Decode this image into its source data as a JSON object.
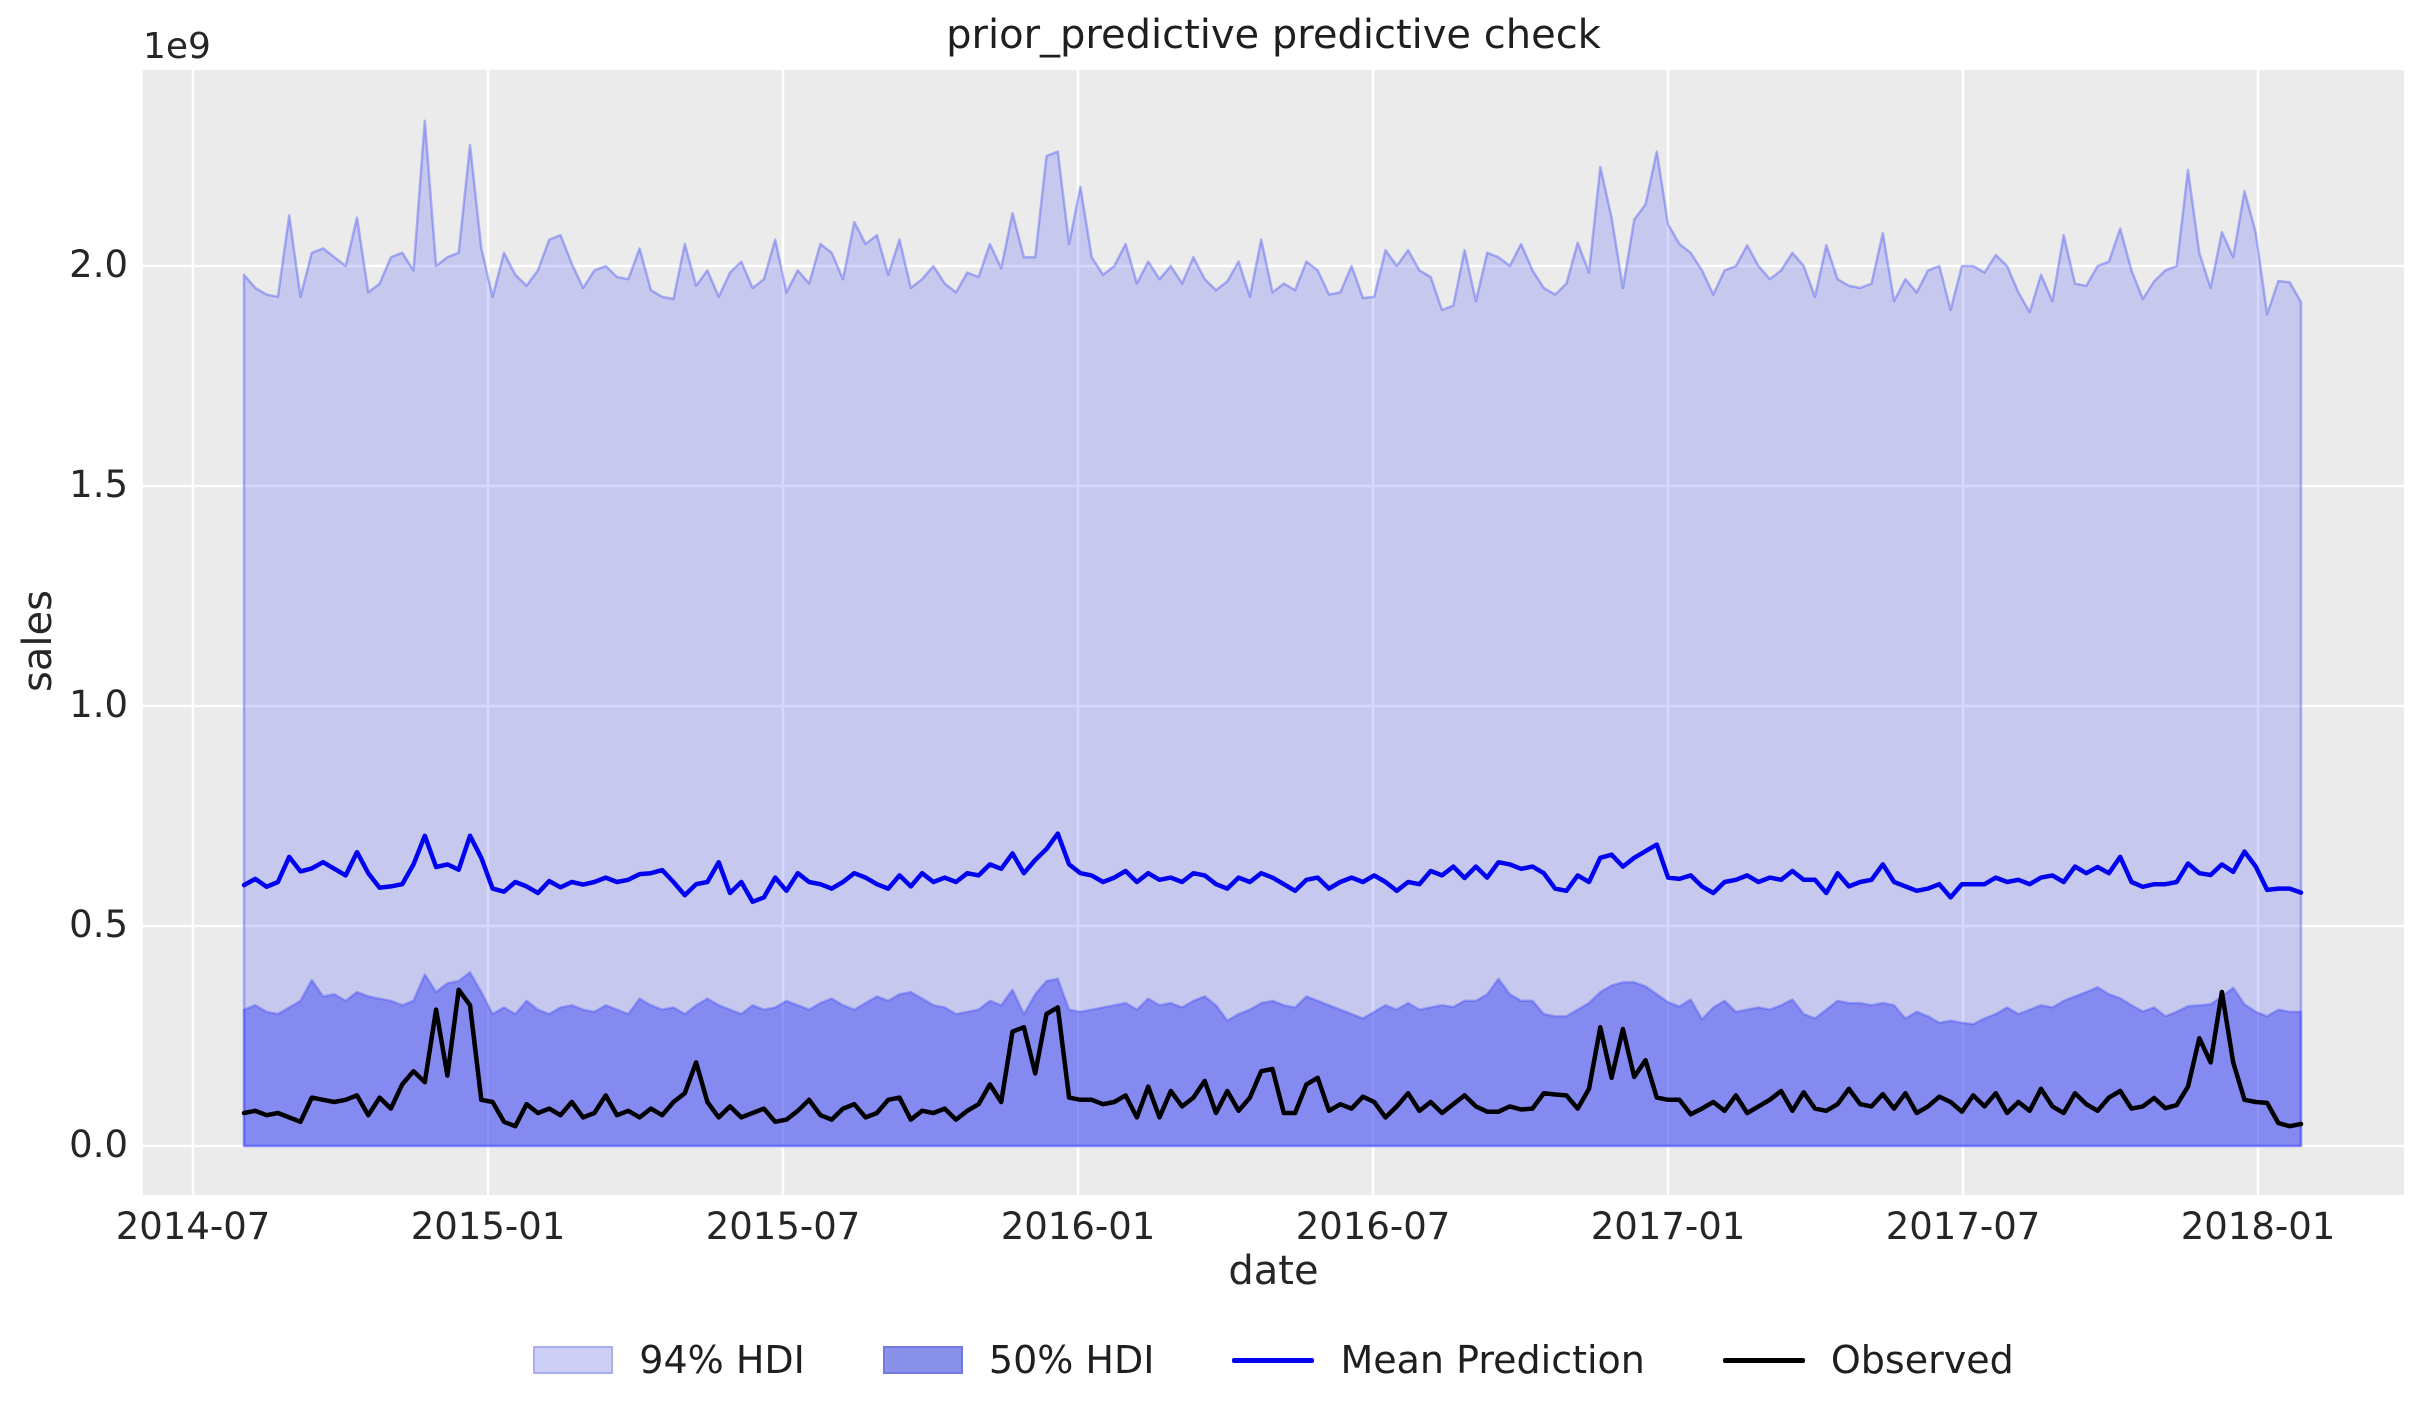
{
  "title": "prior_predictive predictive check",
  "axes": {
    "x": {
      "label": "date",
      "tick_labels": [
        "2014-07",
        "2015-01",
        "2015-07",
        "2016-01",
        "2016-07",
        "2017-01",
        "2017-07",
        "2018-01"
      ]
    },
    "y": {
      "label": "sales",
      "offset_text": "1e9",
      "tick_labels": [
        "0.0",
        "0.5",
        "1.0",
        "1.5",
        "2.0"
      ],
      "tick_values": [
        0.0,
        0.5,
        1.0,
        1.5,
        2.0
      ]
    }
  },
  "legend": {
    "items": [
      {
        "label": "94% HDI",
        "type": "patch",
        "fill": "#cdd0f4",
        "border": "#a9aeee",
        "icon": "hdi94-swatch"
      },
      {
        "label": "50% HDI",
        "type": "patch",
        "fill": "#8a91e8",
        "border": "#707ae2",
        "icon": "hdi50-swatch"
      },
      {
        "label": "Mean Prediction",
        "type": "line",
        "color": "#0103f0",
        "icon": "mean-line-sample"
      },
      {
        "label": "Observed",
        "type": "line",
        "color": "#000000",
        "icon": "observed-line-sample"
      }
    ]
  },
  "colors": {
    "figure_bg": "#ffffff",
    "plot_bg": "#ebebeb",
    "grid": "#ffffff",
    "band_base": "rgb(50,60,245)",
    "hdi94_fill_alpha": 0.2,
    "hdi94_edge_alpha": 0.35,
    "hdi50_fill_alpha": 0.44,
    "hdi50_edge_alpha": 0.3,
    "mean_line": "#0103f0",
    "observed_line": "#000000",
    "text": "#262626"
  },
  "chart_data": {
    "type": "area",
    "title": "prior_predictive predictive check",
    "xlabel": "date",
    "ylabel": "sales",
    "y_offset_text": "1e9",
    "y_unit_multiplier": 1000000000,
    "ylim": [
      -0.11,
      2.45
    ],
    "grid": true,
    "legend_position": "lower center horizontal",
    "x_tick_labels": [
      "2014-07",
      "2015-01",
      "2015-07",
      "2016-01",
      "2016-07",
      "2017-01",
      "2017-07",
      "2018-01"
    ],
    "y_tick_labels": [
      "0.0",
      "0.5",
      "1.0",
      "1.5",
      "2.0"
    ],
    "x_start": "2014-08",
    "x_end": "2018-01",
    "x_freq": "weekly",
    "n_points": 183,
    "band_lower_value": 0.0,
    "series": [
      {
        "name": "94% HDI",
        "kind": "band_upper",
        "values": [
          1.98,
          1.95,
          1.935,
          1.93,
          2.115,
          1.93,
          2.03,
          2.04,
          2.02,
          2.0,
          2.11,
          1.94,
          1.96,
          2.02,
          2.03,
          1.99,
          2.33,
          2.0,
          2.02,
          2.03,
          2.275,
          2.04,
          1.93,
          2.03,
          1.98,
          1.955,
          1.99,
          2.06,
          2.07,
          2.005,
          1.95,
          1.99,
          2.0,
          1.975,
          1.97,
          2.04,
          1.945,
          1.93,
          1.925,
          2.05,
          1.955,
          1.99,
          1.93,
          1.985,
          2.01,
          1.95,
          1.97,
          2.06,
          1.94,
          1.99,
          1.96,
          2.05,
          2.03,
          1.97,
          2.1,
          2.05,
          2.07,
          1.98,
          2.06,
          1.95,
          1.97,
          2.0,
          1.96,
          1.94,
          1.985,
          1.975,
          2.05,
          1.995,
          2.12,
          2.02,
          2.02,
          2.25,
          2.26,
          2.05,
          2.18,
          2.02,
          1.98,
          2.0,
          2.05,
          1.96,
          2.01,
          1.97,
          2.0,
          1.96,
          2.02,
          1.97,
          1.945,
          1.965,
          2.01,
          1.93,
          2.06,
          1.94,
          1.96,
          1.945,
          2.01,
          1.99,
          1.935,
          1.94,
          2.0,
          1.927,
          1.93,
          2.036,
          2.0,
          2.036,
          1.99,
          1.975,
          1.9,
          1.91,
          2.036,
          1.92,
          2.03,
          2.02,
          2.0,
          2.05,
          1.99,
          1.95,
          1.935,
          1.96,
          2.053,
          1.985,
          2.225,
          2.11,
          1.95,
          2.105,
          2.14,
          2.26,
          2.095,
          2.05,
          2.03,
          1.99,
          1.935,
          1.99,
          2.0,
          2.047,
          2.0,
          1.97,
          1.99,
          2.03,
          2.0,
          1.93,
          2.047,
          1.97,
          1.955,
          1.95,
          1.96,
          2.075,
          1.92,
          1.97,
          1.94,
          1.99,
          2.0,
          1.9,
          2.0,
          2.0,
          1.985,
          2.025,
          2.0,
          1.94,
          1.895,
          1.98,
          1.92,
          2.07,
          1.96,
          1.955,
          2.0,
          2.01,
          2.085,
          1.99,
          1.925,
          1.965,
          1.99,
          2.0,
          2.218,
          2.03,
          1.95,
          2.077,
          2.02,
          2.17,
          2.075,
          1.89,
          1.966,
          1.963,
          1.918
        ]
      },
      {
        "name": "50% HDI",
        "kind": "band_upper",
        "values": [
          0.31,
          0.32,
          0.305,
          0.3,
          0.315,
          0.33,
          0.377,
          0.34,
          0.345,
          0.33,
          0.35,
          0.34,
          0.335,
          0.33,
          0.32,
          0.33,
          0.39,
          0.35,
          0.37,
          0.375,
          0.395,
          0.35,
          0.3,
          0.315,
          0.3,
          0.33,
          0.31,
          0.3,
          0.315,
          0.32,
          0.31,
          0.305,
          0.32,
          0.31,
          0.3,
          0.335,
          0.32,
          0.31,
          0.315,
          0.3,
          0.32,
          0.335,
          0.32,
          0.31,
          0.3,
          0.32,
          0.31,
          0.315,
          0.33,
          0.32,
          0.31,
          0.325,
          0.335,
          0.32,
          0.31,
          0.325,
          0.34,
          0.33,
          0.345,
          0.35,
          0.335,
          0.32,
          0.315,
          0.3,
          0.305,
          0.31,
          0.33,
          0.32,
          0.355,
          0.3,
          0.345,
          0.375,
          0.38,
          0.31,
          0.305,
          0.31,
          0.315,
          0.32,
          0.325,
          0.31,
          0.335,
          0.32,
          0.325,
          0.315,
          0.33,
          0.34,
          0.32,
          0.285,
          0.3,
          0.31,
          0.325,
          0.33,
          0.32,
          0.315,
          0.34,
          0.33,
          0.32,
          0.31,
          0.3,
          0.29,
          0.305,
          0.32,
          0.31,
          0.325,
          0.31,
          0.315,
          0.32,
          0.316,
          0.33,
          0.33,
          0.345,
          0.38,
          0.345,
          0.33,
          0.33,
          0.3,
          0.295,
          0.295,
          0.31,
          0.325,
          0.35,
          0.365,
          0.372,
          0.372,
          0.363,
          0.345,
          0.327,
          0.317,
          0.333,
          0.288,
          0.315,
          0.33,
          0.305,
          0.31,
          0.315,
          0.31,
          0.32,
          0.333,
          0.3,
          0.29,
          0.31,
          0.33,
          0.325,
          0.325,
          0.32,
          0.325,
          0.32,
          0.29,
          0.305,
          0.295,
          0.28,
          0.285,
          0.28,
          0.277,
          0.29,
          0.3,
          0.315,
          0.3,
          0.31,
          0.32,
          0.315,
          0.33,
          0.34,
          0.35,
          0.361,
          0.345,
          0.336,
          0.32,
          0.306,
          0.315,
          0.295,
          0.305,
          0.318,
          0.32,
          0.322,
          0.34,
          0.36,
          0.322,
          0.305,
          0.295,
          0.31,
          0.305,
          0.305
        ]
      },
      {
        "name": "Mean Prediction",
        "kind": "line",
        "values": [
          0.593,
          0.607,
          0.589,
          0.6,
          0.657,
          0.624,
          0.631,
          0.645,
          0.63,
          0.615,
          0.668,
          0.62,
          0.587,
          0.59,
          0.595,
          0.64,
          0.705,
          0.634,
          0.64,
          0.628,
          0.705,
          0.655,
          0.585,
          0.578,
          0.6,
          0.59,
          0.575,
          0.602,
          0.588,
          0.6,
          0.594,
          0.6,
          0.61,
          0.6,
          0.605,
          0.618,
          0.62,
          0.627,
          0.6,
          0.57,
          0.595,
          0.6,
          0.645,
          0.575,
          0.6,
          0.555,
          0.565,
          0.61,
          0.58,
          0.62,
          0.6,
          0.595,
          0.585,
          0.6,
          0.62,
          0.61,
          0.595,
          0.585,
          0.615,
          0.59,
          0.62,
          0.6,
          0.61,
          0.6,
          0.62,
          0.615,
          0.64,
          0.63,
          0.665,
          0.62,
          0.65,
          0.675,
          0.71,
          0.64,
          0.62,
          0.615,
          0.6,
          0.61,
          0.625,
          0.6,
          0.62,
          0.605,
          0.61,
          0.6,
          0.62,
          0.615,
          0.595,
          0.585,
          0.61,
          0.6,
          0.62,
          0.61,
          0.595,
          0.58,
          0.605,
          0.61,
          0.585,
          0.6,
          0.61,
          0.6,
          0.615,
          0.6,
          0.58,
          0.6,
          0.595,
          0.625,
          0.615,
          0.635,
          0.609,
          0.635,
          0.61,
          0.645,
          0.64,
          0.63,
          0.635,
          0.62,
          0.585,
          0.58,
          0.615,
          0.6,
          0.655,
          0.662,
          0.635,
          0.655,
          0.67,
          0.685,
          0.61,
          0.607,
          0.615,
          0.59,
          0.575,
          0.6,
          0.605,
          0.615,
          0.6,
          0.61,
          0.605,
          0.625,
          0.605,
          0.605,
          0.575,
          0.62,
          0.59,
          0.6,
          0.605,
          0.64,
          0.6,
          0.59,
          0.58,
          0.585,
          0.595,
          0.565,
          0.595,
          0.595,
          0.595,
          0.61,
          0.6,
          0.605,
          0.595,
          0.61,
          0.615,
          0.6,
          0.635,
          0.62,
          0.634,
          0.62,
          0.657,
          0.6,
          0.589,
          0.595,
          0.595,
          0.6,
          0.642,
          0.62,
          0.616,
          0.64,
          0.623,
          0.669,
          0.635,
          0.582,
          0.585,
          0.585,
          0.576
        ]
      },
      {
        "name": "Observed",
        "kind": "line",
        "values": [
          0.075,
          0.08,
          0.07,
          0.075,
          0.065,
          0.055,
          0.11,
          0.105,
          0.1,
          0.105,
          0.115,
          0.07,
          0.11,
          0.085,
          0.14,
          0.17,
          0.145,
          0.31,
          0.16,
          0.355,
          0.32,
          0.105,
          0.1,
          0.055,
          0.045,
          0.095,
          0.075,
          0.085,
          0.07,
          0.1,
          0.065,
          0.075,
          0.115,
          0.07,
          0.08,
          0.065,
          0.085,
          0.07,
          0.1,
          0.12,
          0.19,
          0.1,
          0.065,
          0.09,
          0.065,
          0.075,
          0.085,
          0.055,
          0.06,
          0.08,
          0.105,
          0.07,
          0.06,
          0.085,
          0.095,
          0.065,
          0.075,
          0.105,
          0.11,
          0.06,
          0.08,
          0.075,
          0.085,
          0.06,
          0.08,
          0.095,
          0.14,
          0.1,
          0.26,
          0.27,
          0.165,
          0.3,
          0.315,
          0.11,
          0.105,
          0.105,
          0.095,
          0.1,
          0.115,
          0.065,
          0.135,
          0.065,
          0.125,
          0.09,
          0.11,
          0.148,
          0.075,
          0.125,
          0.08,
          0.11,
          0.17,
          0.175,
          0.075,
          0.075,
          0.14,
          0.155,
          0.08,
          0.095,
          0.085,
          0.112,
          0.1,
          0.065,
          0.09,
          0.12,
          0.08,
          0.1,
          0.075,
          0.095,
          0.115,
          0.09,
          0.078,
          0.078,
          0.09,
          0.083,
          0.085,
          0.12,
          0.117,
          0.115,
          0.085,
          0.13,
          0.27,
          0.155,
          0.266,
          0.157,
          0.195,
          0.11,
          0.105,
          0.105,
          0.072,
          0.085,
          0.1,
          0.08,
          0.115,
          0.075,
          0.09,
          0.105,
          0.125,
          0.08,
          0.122,
          0.085,
          0.08,
          0.095,
          0.13,
          0.095,
          0.09,
          0.118,
          0.085,
          0.12,
          0.075,
          0.09,
          0.112,
          0.1,
          0.078,
          0.115,
          0.09,
          0.12,
          0.075,
          0.1,
          0.08,
          0.13,
          0.09,
          0.075,
          0.12,
          0.095,
          0.08,
          0.11,
          0.125,
          0.085,
          0.09,
          0.109,
          0.086,
          0.093,
          0.135,
          0.245,
          0.19,
          0.35,
          0.19,
          0.105,
          0.1,
          0.098,
          0.052,
          0.045,
          0.05
        ]
      }
    ]
  }
}
